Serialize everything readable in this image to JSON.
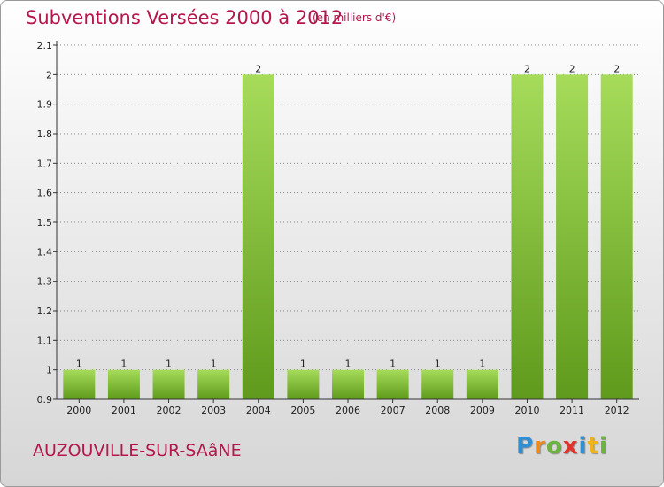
{
  "header": {
    "title": "Subventions Versées 2000 à 2012",
    "unit": "(en milliers d'€)"
  },
  "footer": {
    "town": "AUZOUVILLE-SUR-SAâNE",
    "logo_letters": [
      "P",
      "r",
      "o",
      "x",
      "i",
      "t",
      "i"
    ],
    "logo_colors": [
      "#2d8fd5",
      "#f08a1c",
      "#6cb33f",
      "#e2332b",
      "#2d8fd5",
      "#f0b418",
      "#6cb33f"
    ]
  },
  "colors": {
    "bar_light": "#9fd654",
    "bar_dark": "#5f9a1c",
    "axis": "#333333",
    "grid": "#888888"
  },
  "chart_data": {
    "type": "bar",
    "title": "Subventions Versées 2000 à 2012",
    "subtitle": "(en milliers d'€)",
    "categories": [
      "2000",
      "2001",
      "2002",
      "2003",
      "2004",
      "2005",
      "2006",
      "2007",
      "2008",
      "2009",
      "2010",
      "2011",
      "2012"
    ],
    "values": [
      1,
      1,
      1,
      1,
      2,
      1,
      1,
      1,
      1,
      1,
      2,
      2,
      2
    ],
    "data_labels": [
      "1",
      "1",
      "1",
      "1",
      "2",
      "1",
      "1",
      "1",
      "1",
      "1",
      "2",
      "2",
      "2"
    ],
    "ylim": [
      0.9,
      2.1
    ],
    "yticks": [
      0.9,
      1,
      1.1,
      1.2,
      1.3,
      1.4,
      1.5,
      1.6,
      1.7,
      1.8,
      1.9,
      2,
      2.1
    ],
    "ytick_labels": [
      "0.9",
      "1",
      "1.1",
      "1.2",
      "1.3",
      "1.4",
      "1.5",
      "1.6",
      "1.7",
      "1.8",
      "1.9",
      "2",
      "2.1"
    ],
    "grid": "horizontal dotted",
    "xlabel": "",
    "ylabel": ""
  }
}
